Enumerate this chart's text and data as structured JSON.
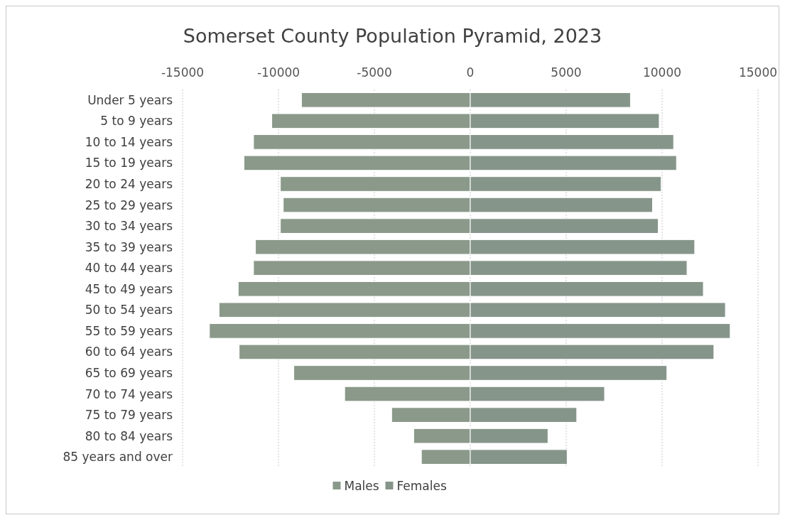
{
  "chart_data": {
    "type": "bar",
    "orientation": "horizontal",
    "stacked": true,
    "title": "Somerset County Population Pyramid, 2023",
    "categories": [
      "Under 5 years",
      "5 to 9 years",
      "10 to 14 years",
      "15 to 19 years",
      "20 to 24 years",
      "25 to 29 years",
      "30 to 34 years",
      "35 to 39 years",
      "40 to 44 years",
      "45 to 49 years",
      "50 to 54 years",
      "55 to 59 years",
      "60 to 64 years",
      "65 to 69 years",
      "70 to 74 years",
      "75 to 79 years",
      "80 to 84 years",
      "85 years and over"
    ],
    "series": [
      {
        "name": "Males",
        "color": "#8a998a",
        "values": [
          -8800,
          -10350,
          -11300,
          -11800,
          -9900,
          -9750,
          -9900,
          -11200,
          -11300,
          -12100,
          -13100,
          -13600,
          -12050,
          -9200,
          -6550,
          -4100,
          -2950,
          -2550
        ]
      },
      {
        "name": "Females",
        "color": "#86958a",
        "values": [
          8350,
          9850,
          10600,
          10750,
          9950,
          9500,
          9800,
          11700,
          11300,
          12150,
          13300,
          13550,
          12700,
          10250,
          7000,
          5550,
          4050,
          5050
        ]
      }
    ],
    "xlim": [
      -15000,
      15000
    ],
    "xticks": [
      -15000,
      -10000,
      -5000,
      0,
      5000,
      10000,
      15000
    ],
    "grid": "x",
    "legend": "bottom"
  }
}
